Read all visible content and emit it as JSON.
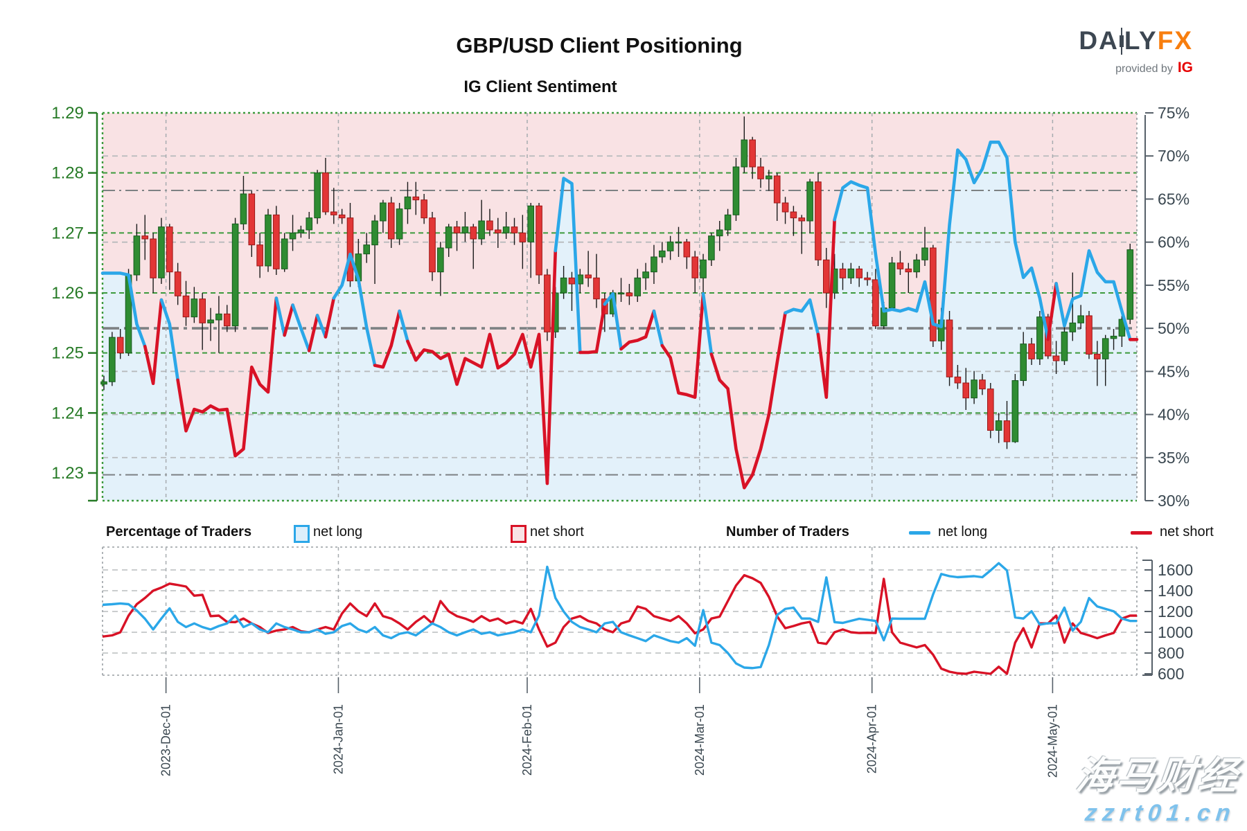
{
  "header": {
    "title": "GBP/USD Client Positioning",
    "subtitle": "IG Client Sentiment"
  },
  "logo": {
    "brand_a": "DA",
    "brand_b": "LY",
    "brand_fx": "FX",
    "tagline": "provided by",
    "ig": "IG"
  },
  "legend": {
    "pct_header": "Percentage of Traders",
    "pct_long": "net long",
    "pct_short": "net short",
    "num_header": "Number of Traders",
    "num_long": "net long",
    "num_short": "net short"
  },
  "watermark": {
    "line1": "海马财经",
    "line2": "zzrt01.cn"
  },
  "colors": {
    "line_blue": "#2ba7e8",
    "line_red": "#d81226",
    "fill_blue": "#e3f1fa",
    "fill_pink": "#f9e2e4",
    "candle_up": "#2f8c32",
    "candle_up_edge": "#14591c",
    "candle_down": "#e23636",
    "candle_down_edge": "#9c1616",
    "wick": "#1a1a1a",
    "price_axis_green": "#267a26",
    "grid_green": "#3c9a3c",
    "grid_gray": "#b7babc",
    "refline_gray": "#7d8183",
    "axis_dark": "#3a4750",
    "border_gray": "#a6abaf"
  },
  "chart_data": {
    "type": "candlestick+line",
    "title": "IG Client Sentiment",
    "subtitle_note": "GBP/USD daily candles with IG client sentiment (% net long, blue >=50%, red <50%); pink fill = net short share, blue fill = net long share",
    "price_axis": {
      "side": "left",
      "ticks": [
        1.29,
        1.28,
        1.27,
        1.26,
        1.25,
        1.24,
        1.23
      ],
      "range": [
        1.2254,
        1.29
      ]
    },
    "pct_axis": {
      "side": "right",
      "ticks": [
        75,
        70,
        65,
        60,
        55,
        50,
        45,
        40,
        35,
        30
      ],
      "range": [
        30,
        75
      ],
      "ref_mid": 50,
      "ref_upper": 66,
      "ref_lower": 33,
      "gray_grid": [
        70,
        60,
        45,
        40,
        35
      ]
    },
    "count_axis": {
      "side": "right",
      "ticks": [
        1600,
        1400,
        1200,
        1000,
        800,
        600
      ],
      "range": [
        520,
        1810
      ],
      "grid": [
        1600,
        1400,
        1200,
        1000,
        800
      ]
    },
    "x_axis": {
      "month_labels": [
        "2023-Dec-01",
        "2024-Jan-01",
        "2024-Feb-01",
        "2024-Mar-01",
        "2024-Apr-01",
        "2024-May-01"
      ],
      "month_index": [
        8,
        29,
        52,
        73,
        94,
        116
      ]
    },
    "dates": [
      "2023-11-21",
      "2023-11-22",
      "2023-11-23",
      "2023-11-24",
      "2023-11-27",
      "2023-11-28",
      "2023-11-29",
      "2023-11-30",
      "2023-12-01",
      "2023-12-04",
      "2023-12-05",
      "2023-12-06",
      "2023-12-07",
      "2023-12-08",
      "2023-12-11",
      "2023-12-12",
      "2023-12-13",
      "2023-12-14",
      "2023-12-15",
      "2023-12-18",
      "2023-12-19",
      "2023-12-20",
      "2023-12-21",
      "2023-12-22",
      "2023-12-25",
      "2023-12-26",
      "2023-12-27",
      "2023-12-28",
      "2023-12-29",
      "2024-01-01",
      "2024-01-02",
      "2024-01-03",
      "2024-01-04",
      "2024-01-05",
      "2024-01-08",
      "2024-01-09",
      "2024-01-10",
      "2024-01-11",
      "2024-01-12",
      "2024-01-15",
      "2024-01-16",
      "2024-01-17",
      "2024-01-18",
      "2024-01-19",
      "2024-01-22",
      "2024-01-23",
      "2024-01-24",
      "2024-01-25",
      "2024-01-26",
      "2024-01-29",
      "2024-01-30",
      "2024-01-31",
      "2024-02-01",
      "2024-02-02",
      "2024-02-05",
      "2024-02-06",
      "2024-02-07",
      "2024-02-08",
      "2024-02-09",
      "2024-02-12",
      "2024-02-13",
      "2024-02-14",
      "2024-02-15",
      "2024-02-16",
      "2024-02-19",
      "2024-02-20",
      "2024-02-21",
      "2024-02-22",
      "2024-02-23",
      "2024-02-26",
      "2024-02-27",
      "2024-02-28",
      "2024-02-29",
      "2024-03-01",
      "2024-03-04",
      "2024-03-05",
      "2024-03-06",
      "2024-03-07",
      "2024-03-08",
      "2024-03-11",
      "2024-03-12",
      "2024-03-13",
      "2024-03-14",
      "2024-03-15",
      "2024-03-18",
      "2024-03-19",
      "2024-03-20",
      "2024-03-21",
      "2024-03-22",
      "2024-03-25",
      "2024-03-26",
      "2024-03-27",
      "2024-03-28",
      "2024-03-29",
      "2024-04-01",
      "2024-04-02",
      "2024-04-03",
      "2024-04-04",
      "2024-04-05",
      "2024-04-08",
      "2024-04-09",
      "2024-04-10",
      "2024-04-11",
      "2024-04-12",
      "2024-04-15",
      "2024-04-16",
      "2024-04-17",
      "2024-04-18",
      "2024-04-19",
      "2024-04-22",
      "2024-04-23",
      "2024-04-24",
      "2024-04-25",
      "2024-04-26",
      "2024-04-29",
      "2024-04-30",
      "2024-05-01",
      "2024-05-02",
      "2024-05-03",
      "2024-05-06",
      "2024-05-07",
      "2024-05-08",
      "2024-05-09",
      "2024-05-10",
      "2024-05-13",
      "2024-05-14"
    ],
    "ohlc": [
      [
        1.2448,
        1.2462,
        1.2438,
        1.2452
      ],
      [
        1.2452,
        1.2535,
        1.2445,
        1.2526
      ],
      [
        1.2526,
        1.254,
        1.249,
        1.25
      ],
      [
        1.25,
        1.264,
        1.2495,
        1.263
      ],
      [
        1.263,
        1.2715,
        1.262,
        1.2695
      ],
      [
        1.2695,
        1.273,
        1.2655,
        1.269
      ],
      [
        1.269,
        1.27,
        1.26,
        1.2625
      ],
      [
        1.2625,
        1.2725,
        1.2615,
        1.271
      ],
      [
        1.271,
        1.2715,
        1.2605,
        1.2635
      ],
      [
        1.2635,
        1.265,
        1.258,
        1.2595
      ],
      [
        1.2595,
        1.262,
        1.2545,
        1.256
      ],
      [
        1.256,
        1.261,
        1.255,
        1.259
      ],
      [
        1.259,
        1.26,
        1.2505,
        1.255
      ],
      [
        1.255,
        1.2575,
        1.252,
        1.2555
      ],
      [
        1.2555,
        1.2595,
        1.25,
        1.2565
      ],
      [
        1.2565,
        1.258,
        1.2535,
        1.2545
      ],
      [
        1.2545,
        1.2725,
        1.2535,
        1.2715
      ],
      [
        1.2715,
        1.2795,
        1.2705,
        1.2765
      ],
      [
        1.2765,
        1.277,
        1.266,
        1.268
      ],
      [
        1.268,
        1.27,
        1.2625,
        1.2645
      ],
      [
        1.2645,
        1.274,
        1.2635,
        1.273
      ],
      [
        1.273,
        1.2745,
        1.263,
        1.264
      ],
      [
        1.264,
        1.27,
        1.2635,
        1.269
      ],
      [
        1.269,
        1.273,
        1.267,
        1.27
      ],
      [
        1.27,
        1.2712,
        1.2692,
        1.2705
      ],
      [
        1.2705,
        1.2735,
        1.269,
        1.2725
      ],
      [
        1.2725,
        1.2805,
        1.2715,
        1.28
      ],
      [
        1.28,
        1.2825,
        1.273,
        1.2735
      ],
      [
        1.2735,
        1.2775,
        1.2715,
        1.273
      ],
      [
        1.273,
        1.274,
        1.2715,
        1.2725
      ],
      [
        1.2725,
        1.275,
        1.261,
        1.262
      ],
      [
        1.262,
        1.269,
        1.261,
        1.2665
      ],
      [
        1.2665,
        1.27,
        1.265,
        1.268
      ],
      [
        1.268,
        1.273,
        1.2615,
        1.272
      ],
      [
        1.272,
        1.2755,
        1.27,
        1.275
      ],
      [
        1.275,
        1.276,
        1.2675,
        1.269
      ],
      [
        1.269,
        1.275,
        1.268,
        1.274
      ],
      [
        1.274,
        1.2785,
        1.2715,
        1.276
      ],
      [
        1.276,
        1.2785,
        1.273,
        1.2755
      ],
      [
        1.2755,
        1.2765,
        1.2715,
        1.2725
      ],
      [
        1.2725,
        1.2735,
        1.262,
        1.2635
      ],
      [
        1.2635,
        1.2685,
        1.2595,
        1.2675
      ],
      [
        1.2675,
        1.2715,
        1.266,
        1.271
      ],
      [
        1.271,
        1.272,
        1.267,
        1.27
      ],
      [
        1.27,
        1.2735,
        1.2685,
        1.271
      ],
      [
        1.271,
        1.2715,
        1.264,
        1.269
      ],
      [
        1.269,
        1.2755,
        1.268,
        1.272
      ],
      [
        1.272,
        1.274,
        1.2695,
        1.2705
      ],
      [
        1.2705,
        1.2725,
        1.2675,
        1.27
      ],
      [
        1.27,
        1.2735,
        1.269,
        1.271
      ],
      [
        1.271,
        1.2725,
        1.268,
        1.27
      ],
      [
        1.27,
        1.273,
        1.264,
        1.2685
      ],
      [
        1.2685,
        1.275,
        1.2625,
        1.2745
      ],
      [
        1.2745,
        1.275,
        1.2615,
        1.263
      ],
      [
        1.263,
        1.264,
        1.252,
        1.2535
      ],
      [
        1.2535,
        1.261,
        1.2525,
        1.26
      ],
      [
        1.26,
        1.2645,
        1.259,
        1.2625
      ],
      [
        1.2625,
        1.2635,
        1.257,
        1.2615
      ],
      [
        1.2615,
        1.264,
        1.26,
        1.263
      ],
      [
        1.263,
        1.267,
        1.261,
        1.2625
      ],
      [
        1.2625,
        1.2665,
        1.2575,
        1.259
      ],
      [
        1.259,
        1.26,
        1.2535,
        1.2565
      ],
      [
        1.2565,
        1.2605,
        1.256,
        1.26
      ],
      [
        1.26,
        1.2625,
        1.2585,
        1.26
      ],
      [
        1.26,
        1.2615,
        1.258,
        1.2595
      ],
      [
        1.2595,
        1.264,
        1.2585,
        1.2625
      ],
      [
        1.2625,
        1.265,
        1.2605,
        1.2635
      ],
      [
        1.2635,
        1.268,
        1.2615,
        1.266
      ],
      [
        1.266,
        1.2685,
        1.265,
        1.267
      ],
      [
        1.267,
        1.2695,
        1.2655,
        1.2685
      ],
      [
        1.2685,
        1.271,
        1.266,
        1.2685
      ],
      [
        1.2685,
        1.269,
        1.264,
        1.266
      ],
      [
        1.266,
        1.267,
        1.26,
        1.2625
      ],
      [
        1.2625,
        1.2665,
        1.2595,
        1.2655
      ],
      [
        1.2655,
        1.27,
        1.2645,
        1.2695
      ],
      [
        1.2695,
        1.272,
        1.267,
        1.2705
      ],
      [
        1.2705,
        1.274,
        1.2695,
        1.273
      ],
      [
        1.273,
        1.2825,
        1.272,
        1.281
      ],
      [
        1.281,
        1.2894,
        1.28,
        1.2855
      ],
      [
        1.2855,
        1.286,
        1.279,
        1.281
      ],
      [
        1.281,
        1.2825,
        1.2775,
        1.279
      ],
      [
        1.279,
        1.2805,
        1.277,
        1.2795
      ],
      [
        1.2795,
        1.28,
        1.272,
        1.275
      ],
      [
        1.275,
        1.276,
        1.2715,
        1.2735
      ],
      [
        1.2735,
        1.2745,
        1.2695,
        1.2725
      ],
      [
        1.2725,
        1.273,
        1.2665,
        1.272
      ],
      [
        1.272,
        1.279,
        1.27,
        1.2785
      ],
      [
        1.2785,
        1.28,
        1.2645,
        1.2655
      ],
      [
        1.2655,
        1.2675,
        1.2575,
        1.26
      ],
      [
        1.26,
        1.2665,
        1.259,
        1.264
      ],
      [
        1.264,
        1.265,
        1.2605,
        1.2625
      ],
      [
        1.2625,
        1.265,
        1.2615,
        1.264
      ],
      [
        1.264,
        1.2645,
        1.261,
        1.2625
      ],
      [
        1.2625,
        1.2635,
        1.2612,
        1.2622
      ],
      [
        1.2622,
        1.264,
        1.254,
        1.2545
      ],
      [
        1.2545,
        1.2585,
        1.254,
        1.2575
      ],
      [
        1.2575,
        1.266,
        1.257,
        1.265
      ],
      [
        1.265,
        1.267,
        1.263,
        1.264
      ],
      [
        1.264,
        1.265,
        1.26,
        1.2635
      ],
      [
        1.2635,
        1.2665,
        1.2625,
        1.2655
      ],
      [
        1.2655,
        1.271,
        1.2645,
        1.2675
      ],
      [
        1.2675,
        1.268,
        1.251,
        1.252
      ],
      [
        1.252,
        1.2575,
        1.2505,
        1.2555
      ],
      [
        1.2555,
        1.257,
        1.2445,
        1.246
      ],
      [
        1.246,
        1.248,
        1.244,
        1.245
      ],
      [
        1.245,
        1.2475,
        1.2405,
        1.2425
      ],
      [
        1.2425,
        1.247,
        1.2415,
        1.2455
      ],
      [
        1.2455,
        1.2465,
        1.243,
        1.244
      ],
      [
        1.244,
        1.245,
        1.2358,
        1.2371
      ],
      [
        1.2371,
        1.24,
        1.235,
        1.2387
      ],
      [
        1.2387,
        1.242,
        1.234,
        1.2352
      ],
      [
        1.2352,
        1.2465,
        1.235,
        1.2454
      ],
      [
        1.2454,
        1.2535,
        1.2445,
        1.2515
      ],
      [
        1.2515,
        1.2525,
        1.248,
        1.249
      ],
      [
        1.249,
        1.257,
        1.248,
        1.256
      ],
      [
        1.256,
        1.2565,
        1.249,
        1.2495
      ],
      [
        1.2495,
        1.252,
        1.2465,
        1.2487
      ],
      [
        1.2487,
        1.2545,
        1.248,
        1.2535
      ],
      [
        1.2535,
        1.2634,
        1.252,
        1.255
      ],
      [
        1.255,
        1.258,
        1.254,
        1.2562
      ],
      [
        1.2562,
        1.257,
        1.249,
        1.2498
      ],
      [
        1.2498,
        1.252,
        1.2445,
        1.249
      ],
      [
        1.249,
        1.253,
        1.2445,
        1.2524
      ],
      [
        1.2524,
        1.254,
        1.2505,
        1.2528
      ],
      [
        1.2528,
        1.2562,
        1.251,
        1.2556
      ],
      [
        1.2556,
        1.2682,
        1.2548,
        1.2672
      ]
    ],
    "net_long_pct": [
      56.4,
      56.4,
      56.4,
      56.2,
      50.5,
      47.9,
      43.6,
      53.3,
      50.5,
      44.0,
      38.1,
      40.6,
      40.3,
      41.0,
      40.5,
      40.6,
      35.2,
      36.0,
      45.5,
      43.5,
      42.6,
      53.5,
      49.2,
      52.7,
      50.0,
      47.4,
      51.5,
      49.0,
      53.5,
      55.0,
      58.6,
      55.7,
      50.1,
      45.7,
      45.5,
      48.0,
      52.0,
      48.5,
      46.3,
      47.5,
      47.3,
      46.5,
      47.0,
      43.5,
      46.5,
      46.0,
      45.5,
      49.3,
      45.4,
      46.0,
      47.0,
      49.3,
      45.5,
      49.3,
      32.0,
      59.0,
      67.4,
      66.8,
      47.2,
      47.2,
      47.3,
      52.8,
      54.0,
      47.6,
      48.4,
      48.6,
      49.0,
      52.0,
      48.0,
      46.6,
      42.5,
      42.3,
      42.0,
      54.0,
      47.0,
      44.0,
      43.0,
      36.0,
      31.5,
      33.0,
      36.0,
      40.0,
      46.0,
      51.8,
      52.2,
      52.0,
      53.3,
      49.3,
      42.0,
      62.6,
      66.3,
      67.0,
      66.6,
      66.3,
      58.6,
      52.0,
      52.2,
      52.0,
      52.3,
      52.0,
      55.4,
      50.5,
      50.2,
      62.0,
      70.7,
      69.6,
      66.9,
      68.5,
      71.6,
      71.6,
      69.8,
      60.0,
      55.9,
      57.0,
      53.5,
      48.7,
      55.2,
      50.3,
      53.4,
      53.8,
      59.0,
      56.5,
      55.4,
      55.4,
      52.0,
      48.7
    ],
    "traders_net_long": [
      1265,
      1270,
      1277,
      1270,
      1210,
      1130,
      1027,
      1132,
      1230,
      1100,
      1050,
      1085,
      1050,
      1027,
      1060,
      1085,
      1160,
      1050,
      1085,
      1027,
      1000,
      1085,
      1050,
      1027,
      1000,
      1000,
      1027,
      985,
      1000,
      1060,
      1085,
      1027,
      1000,
      1050,
      970,
      943,
      985,
      1000,
      970,
      1027,
      1085,
      1050,
      1000,
      970,
      1000,
      1027,
      985,
      1000,
      970,
      985,
      1000,
      1027,
      1000,
      1160,
      1630,
      1330,
      1200,
      1100,
      1050,
      1027,
      1000,
      1085,
      1100,
      1000,
      970,
      943,
      915,
      970,
      943,
      915,
      900,
      943,
      870,
      1213,
      900,
      877,
      800,
      700,
      660,
      655,
      665,
      877,
      1166,
      1225,
      1237,
      1132,
      1132,
      1100,
      1528,
      1097,
      1090,
      1110,
      1130,
      1120,
      1109,
      923,
      1132,
      1130,
      1130,
      1130,
      1130,
      1364,
      1561,
      1540,
      1530,
      1535,
      1540,
      1530,
      1595,
      1665,
      1595,
      1143,
      1132,
      1202,
      1074,
      1086,
      1086,
      1237,
      1016,
      1100,
      1329,
      1248,
      1225,
      1202,
      1132,
      1109
    ],
    "traders_net_short": [
      960,
      970,
      1000,
      1160,
      1270,
      1330,
      1400,
      1430,
      1468,
      1455,
      1440,
      1352,
      1360,
      1155,
      1160,
      1100,
      1097,
      1132,
      1085,
      1050,
      993,
      1016,
      1027,
      1050,
      1010,
      1000,
      1027,
      1050,
      1027,
      1180,
      1277,
      1202,
      1155,
      1277,
      1155,
      1132,
      1085,
      1027,
      1100,
      1155,
      1085,
      1300,
      1202,
      1155,
      1132,
      1100,
      1155,
      1109,
      1132,
      1085,
      1109,
      1085,
      1225,
      1027,
      862,
      900,
      1050,
      1132,
      1155,
      1109,
      1085,
      1027,
      1000,
      1085,
      1109,
      1248,
      1225,
      1155,
      1132,
      1109,
      1155,
      1085,
      990,
      1027,
      1132,
      1150,
      1300,
      1450,
      1549,
      1520,
      1475,
      1340,
      1155,
      1039,
      1060,
      1085,
      1100,
      900,
      888,
      1000,
      1027,
      1000,
      993,
      995,
      993,
      1514,
      1000,
      900,
      877,
      854,
      877,
      784,
      650,
      620,
      605,
      600,
      620,
      610,
      600,
      668,
      600,
      900,
      1039,
      854,
      1085,
      1085,
      1160,
      900,
      1085,
      993,
      970,
      943,
      970,
      993,
      1132,
      1160
    ]
  }
}
